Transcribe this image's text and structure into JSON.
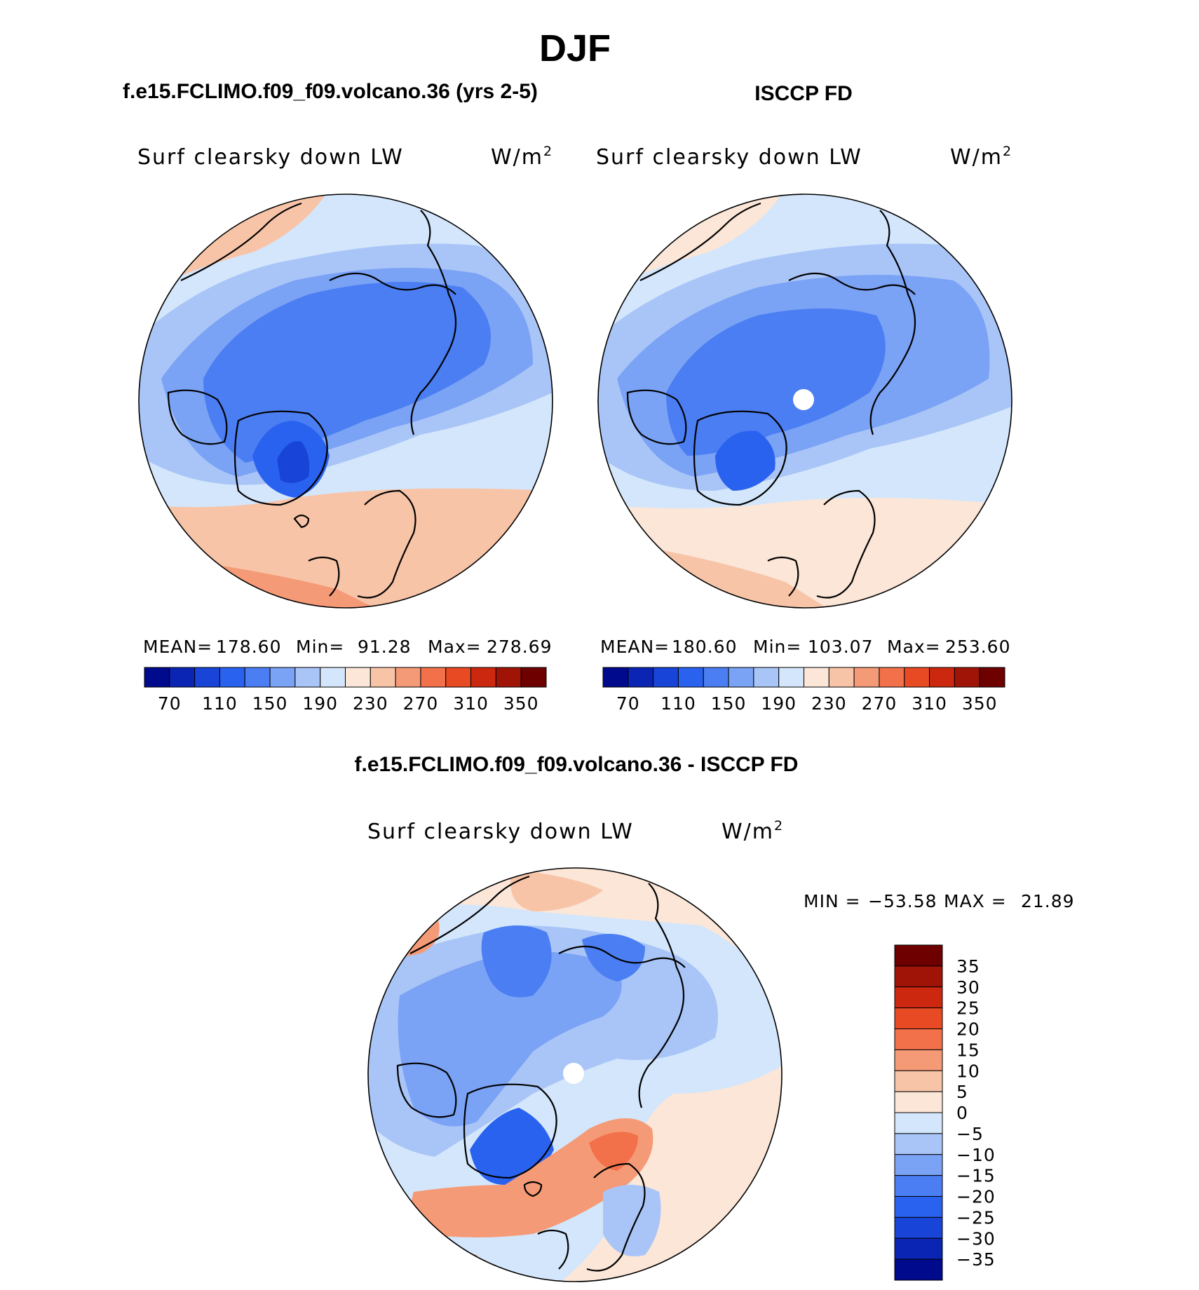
{
  "chart_data": {
    "type": "heatmap",
    "season": "DJF",
    "panels": [
      {
        "id": "model",
        "title": "f.e15.FCLIMO.f09_f09.volcano.36 (yrs 2-5)",
        "variable": "Surf clearsky down LW",
        "units_base": "W/m",
        "units_exp": "2",
        "stats": {
          "mean_label": "MEAN=",
          "mean": "178.60",
          "min_label": "Min=",
          "min": "91.28",
          "max_label": "Max=",
          "max": "278.69"
        },
        "colorbar": {
          "orientation": "horizontal",
          "levels": [
            70,
            90,
            110,
            130,
            150,
            170,
            190,
            210,
            230,
            250,
            270,
            290,
            310,
            330,
            350
          ],
          "tick_labels": [
            "70",
            "110",
            "150",
            "190",
            "230",
            "270",
            "310",
            "350"
          ],
          "colors": [
            "#000a8c",
            "#0a24b4",
            "#1844d8",
            "#2a62f0",
            "#4a7ef2",
            "#7aa2f5",
            "#a9c5f7",
            "#d3e6fb",
            "#fbe6d8",
            "#f8c4a8",
            "#f59a76",
            "#f2714a",
            "#e84a24",
            "#cc2810",
            "#a01408",
            "#6e0000"
          ]
        }
      },
      {
        "id": "obs",
        "title": "ISCCP FD",
        "variable": "Surf clearsky down LW",
        "units_base": "W/m",
        "units_exp": "2",
        "stats": {
          "mean_label": "MEAN=",
          "mean": "180.60",
          "min_label": "Min=",
          "min": "103.07",
          "max_label": "Max=",
          "max": "253.60"
        },
        "colorbar": {
          "orientation": "horizontal",
          "levels": [
            70,
            90,
            110,
            130,
            150,
            170,
            190,
            210,
            230,
            250,
            270,
            290,
            310,
            330,
            350
          ],
          "tick_labels": [
            "70",
            "110",
            "150",
            "190",
            "230",
            "270",
            "310",
            "350"
          ],
          "colors": [
            "#000a8c",
            "#0a24b4",
            "#1844d8",
            "#2a62f0",
            "#4a7ef2",
            "#7aa2f5",
            "#a9c5f7",
            "#d3e6fb",
            "#fbe6d8",
            "#f8c4a8",
            "#f59a76",
            "#f2714a",
            "#e84a24",
            "#cc2810",
            "#a01408",
            "#6e0000"
          ]
        }
      },
      {
        "id": "diff",
        "title": "f.e15.FCLIMO.f09_f09.volcano.36 - ISCCP FD",
        "variable": "Surf clearsky down LW",
        "units_base": "W/m",
        "units_exp": "2",
        "stats": {
          "min_label": "MIN =",
          "min": "−53.58",
          "max_label": "MAX =",
          "max": "21.89"
        },
        "colorbar": {
          "orientation": "vertical",
          "levels": [
            35,
            30,
            25,
            20,
            15,
            10,
            5,
            0,
            -5,
            -10,
            -15,
            -20,
            -25,
            -30,
            -35
          ],
          "tick_labels": [
            "35",
            "30",
            "25",
            "20",
            "15",
            "10",
            "5",
            "0",
            "−5",
            "−10",
            "−15",
            "−20",
            "−25",
            "−30",
            "−35"
          ],
          "colors": [
            "#6e0000",
            "#a01408",
            "#cc2810",
            "#e84a24",
            "#f2714a",
            "#f59a76",
            "#f8c4a8",
            "#fbe6d8",
            "#d3e6fb",
            "#a9c5f7",
            "#7aa2f5",
            "#4a7ef2",
            "#2a62f0",
            "#1844d8",
            "#0a24b4",
            "#000a8c"
          ]
        }
      }
    ]
  }
}
